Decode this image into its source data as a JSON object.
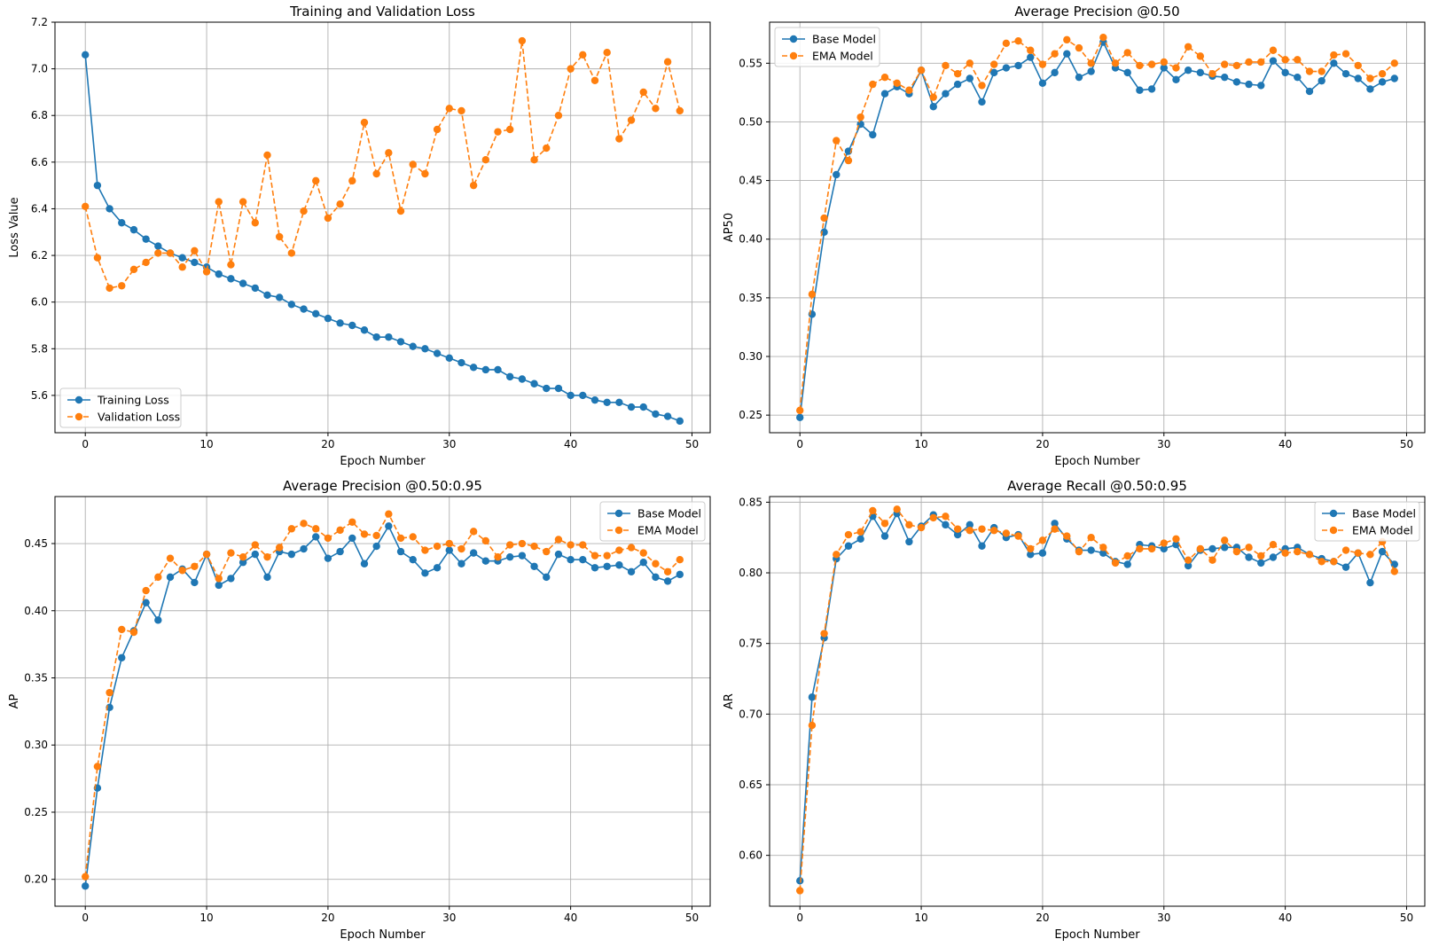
{
  "colors": {
    "blue": "#1f77b4",
    "orange": "#ff7f0e",
    "grid": "#b0b0b0",
    "axis": "#000000"
  },
  "chart_data": [
    {
      "type": "line",
      "title": "Training and Validation Loss",
      "xlabel": "Epoch Number",
      "ylabel": "Loss Value",
      "xlim": [
        -2.5,
        51.5
      ],
      "ylim": [
        5.44,
        7.2
      ],
      "xticks": [
        0,
        10,
        20,
        30,
        40,
        50
      ],
      "yticks": [
        5.6,
        5.8,
        6.0,
        6.2,
        6.4,
        6.6,
        6.8,
        7.0,
        7.2
      ],
      "ytick_decimals": 1,
      "grid": true,
      "legend_position": "lower-left",
      "series": [
        {
          "name": "Training Loss",
          "color": "#1f77b4",
          "dashed": false,
          "values": [
            7.06,
            6.5,
            6.4,
            6.34,
            6.31,
            6.27,
            6.24,
            6.21,
            6.19,
            6.17,
            6.15,
            6.12,
            6.1,
            6.08,
            6.06,
            6.03,
            6.02,
            5.99,
            5.97,
            5.95,
            5.93,
            5.91,
            5.9,
            5.88,
            5.85,
            5.85,
            5.83,
            5.81,
            5.8,
            5.78,
            5.76,
            5.74,
            5.72,
            5.71,
            5.71,
            5.68,
            5.67,
            5.65,
            5.63,
            5.63,
            5.6,
            5.6,
            5.58,
            5.57,
            5.57,
            5.55,
            5.55,
            5.52,
            5.51,
            5.49
          ]
        },
        {
          "name": "Validation Loss",
          "color": "#ff7f0e",
          "dashed": true,
          "values": [
            6.41,
            6.19,
            6.06,
            6.07,
            6.14,
            6.17,
            6.21,
            6.21,
            6.15,
            6.22,
            6.13,
            6.43,
            6.16,
            6.43,
            6.34,
            6.63,
            6.28,
            6.21,
            6.39,
            6.52,
            6.36,
            6.42,
            6.52,
            6.77,
            6.55,
            6.64,
            6.39,
            6.59,
            6.55,
            6.74,
            6.83,
            6.82,
            6.5,
            6.61,
            6.73,
            6.74,
            7.12,
            6.61,
            6.66,
            6.8,
            7.0,
            7.06,
            6.95,
            7.07,
            6.7,
            6.78,
            6.9,
            6.83,
            7.03,
            6.82
          ]
        }
      ]
    },
    {
      "type": "line",
      "title": "Average Precision @0.50",
      "xlabel": "Epoch Number",
      "ylabel": "AP50",
      "xlim": [
        -2.5,
        51.5
      ],
      "ylim": [
        0.235,
        0.585
      ],
      "xticks": [
        0,
        10,
        20,
        30,
        40,
        50
      ],
      "yticks": [
        0.25,
        0.3,
        0.35,
        0.4,
        0.45,
        0.5,
        0.55
      ],
      "ytick_decimals": 2,
      "grid": true,
      "legend_position": "upper-left",
      "series": [
        {
          "name": "Base Model",
          "color": "#1f77b4",
          "dashed": false,
          "values": [
            0.248,
            0.336,
            0.406,
            0.455,
            0.475,
            0.498,
            0.489,
            0.524,
            0.53,
            0.524,
            0.544,
            0.513,
            0.524,
            0.532,
            0.537,
            0.517,
            0.542,
            0.546,
            0.548,
            0.555,
            0.533,
            0.542,
            0.558,
            0.538,
            0.543,
            0.568,
            0.546,
            0.542,
            0.527,
            0.528,
            0.546,
            0.536,
            0.544,
            0.542,
            0.539,
            0.538,
            0.534,
            0.532,
            0.531,
            0.552,
            0.542,
            0.538,
            0.526,
            0.535,
            0.55,
            0.541,
            0.537,
            0.528,
            0.534,
            0.537
          ]
        },
        {
          "name": "EMA Model",
          "color": "#ff7f0e",
          "dashed": true,
          "values": [
            0.254,
            0.353,
            0.418,
            0.484,
            0.467,
            0.504,
            0.532,
            0.538,
            0.533,
            0.527,
            0.544,
            0.521,
            0.548,
            0.541,
            0.55,
            0.531,
            0.549,
            0.567,
            0.569,
            0.561,
            0.549,
            0.558,
            0.57,
            0.563,
            0.55,
            0.572,
            0.55,
            0.559,
            0.548,
            0.549,
            0.551,
            0.546,
            0.564,
            0.556,
            0.541,
            0.549,
            0.548,
            0.551,
            0.551,
            0.561,
            0.553,
            0.553,
            0.543,
            0.543,
            0.557,
            0.558,
            0.548,
            0.537,
            0.541,
            0.55
          ]
        }
      ]
    },
    {
      "type": "line",
      "title": "Average Precision @0.50:0.95",
      "xlabel": "Epoch Number",
      "ylabel": "AP",
      "xlim": [
        -2.5,
        51.5
      ],
      "ylim": [
        0.18,
        0.485
      ],
      "xticks": [
        0,
        10,
        20,
        30,
        40,
        50
      ],
      "yticks": [
        0.2,
        0.25,
        0.3,
        0.35,
        0.4,
        0.45
      ],
      "ytick_decimals": 2,
      "grid": true,
      "legend_position": "upper-right",
      "series": [
        {
          "name": "Base Model",
          "color": "#1f77b4",
          "dashed": false,
          "values": [
            0.195,
            0.268,
            0.328,
            0.365,
            0.385,
            0.406,
            0.393,
            0.425,
            0.431,
            0.421,
            0.442,
            0.419,
            0.424,
            0.436,
            0.442,
            0.425,
            0.444,
            0.442,
            0.446,
            0.455,
            0.439,
            0.444,
            0.454,
            0.435,
            0.448,
            0.463,
            0.444,
            0.438,
            0.428,
            0.432,
            0.445,
            0.435,
            0.443,
            0.437,
            0.437,
            0.44,
            0.441,
            0.433,
            0.425,
            0.442,
            0.438,
            0.438,
            0.432,
            0.433,
            0.434,
            0.429,
            0.436,
            0.425,
            0.422,
            0.427
          ]
        },
        {
          "name": "EMA Model",
          "color": "#ff7f0e",
          "dashed": true,
          "values": [
            0.202,
            0.284,
            0.339,
            0.386,
            0.384,
            0.415,
            0.425,
            0.439,
            0.43,
            0.433,
            0.442,
            0.424,
            0.443,
            0.44,
            0.449,
            0.44,
            0.447,
            0.461,
            0.465,
            0.461,
            0.454,
            0.46,
            0.466,
            0.457,
            0.456,
            0.472,
            0.454,
            0.455,
            0.445,
            0.448,
            0.45,
            0.446,
            0.459,
            0.452,
            0.44,
            0.449,
            0.45,
            0.448,
            0.444,
            0.453,
            0.449,
            0.449,
            0.441,
            0.441,
            0.445,
            0.447,
            0.443,
            0.435,
            0.429,
            0.438
          ]
        }
      ]
    },
    {
      "type": "line",
      "title": "Average Recall @0.50:0.95",
      "xlabel": "Epoch Number",
      "ylabel": "AR",
      "xlim": [
        -2.5,
        51.5
      ],
      "ylim": [
        0.564,
        0.854
      ],
      "xticks": [
        0,
        10,
        20,
        30,
        40,
        50
      ],
      "yticks": [
        0.6,
        0.65,
        0.7,
        0.75,
        0.8,
        0.85
      ],
      "ytick_decimals": 2,
      "grid": true,
      "legend_position": "upper-right",
      "series": [
        {
          "name": "Base Model",
          "color": "#1f77b4",
          "dashed": false,
          "values": [
            0.582,
            0.712,
            0.754,
            0.81,
            0.819,
            0.824,
            0.84,
            0.826,
            0.842,
            0.822,
            0.833,
            0.841,
            0.834,
            0.827,
            0.834,
            0.819,
            0.832,
            0.825,
            0.827,
            0.813,
            0.814,
            0.835,
            0.824,
            0.816,
            0.816,
            0.814,
            0.808,
            0.806,
            0.82,
            0.819,
            0.817,
            0.82,
            0.805,
            0.816,
            0.817,
            0.818,
            0.818,
            0.811,
            0.807,
            0.811,
            0.817,
            0.818,
            0.813,
            0.81,
            0.808,
            0.804,
            0.814,
            0.793,
            0.815,
            0.806
          ]
        },
        {
          "name": "EMA Model",
          "color": "#ff7f0e",
          "dashed": true,
          "values": [
            0.575,
            0.692,
            0.757,
            0.813,
            0.827,
            0.829,
            0.844,
            0.835,
            0.845,
            0.834,
            0.832,
            0.839,
            0.84,
            0.831,
            0.83,
            0.831,
            0.83,
            0.828,
            0.826,
            0.817,
            0.823,
            0.831,
            0.826,
            0.815,
            0.825,
            0.818,
            0.807,
            0.812,
            0.817,
            0.817,
            0.821,
            0.824,
            0.809,
            0.817,
            0.809,
            0.823,
            0.815,
            0.818,
            0.812,
            0.82,
            0.814,
            0.815,
            0.813,
            0.808,
            0.808,
            0.816,
            0.814,
            0.813,
            0.822,
            0.801
          ]
        }
      ]
    }
  ]
}
